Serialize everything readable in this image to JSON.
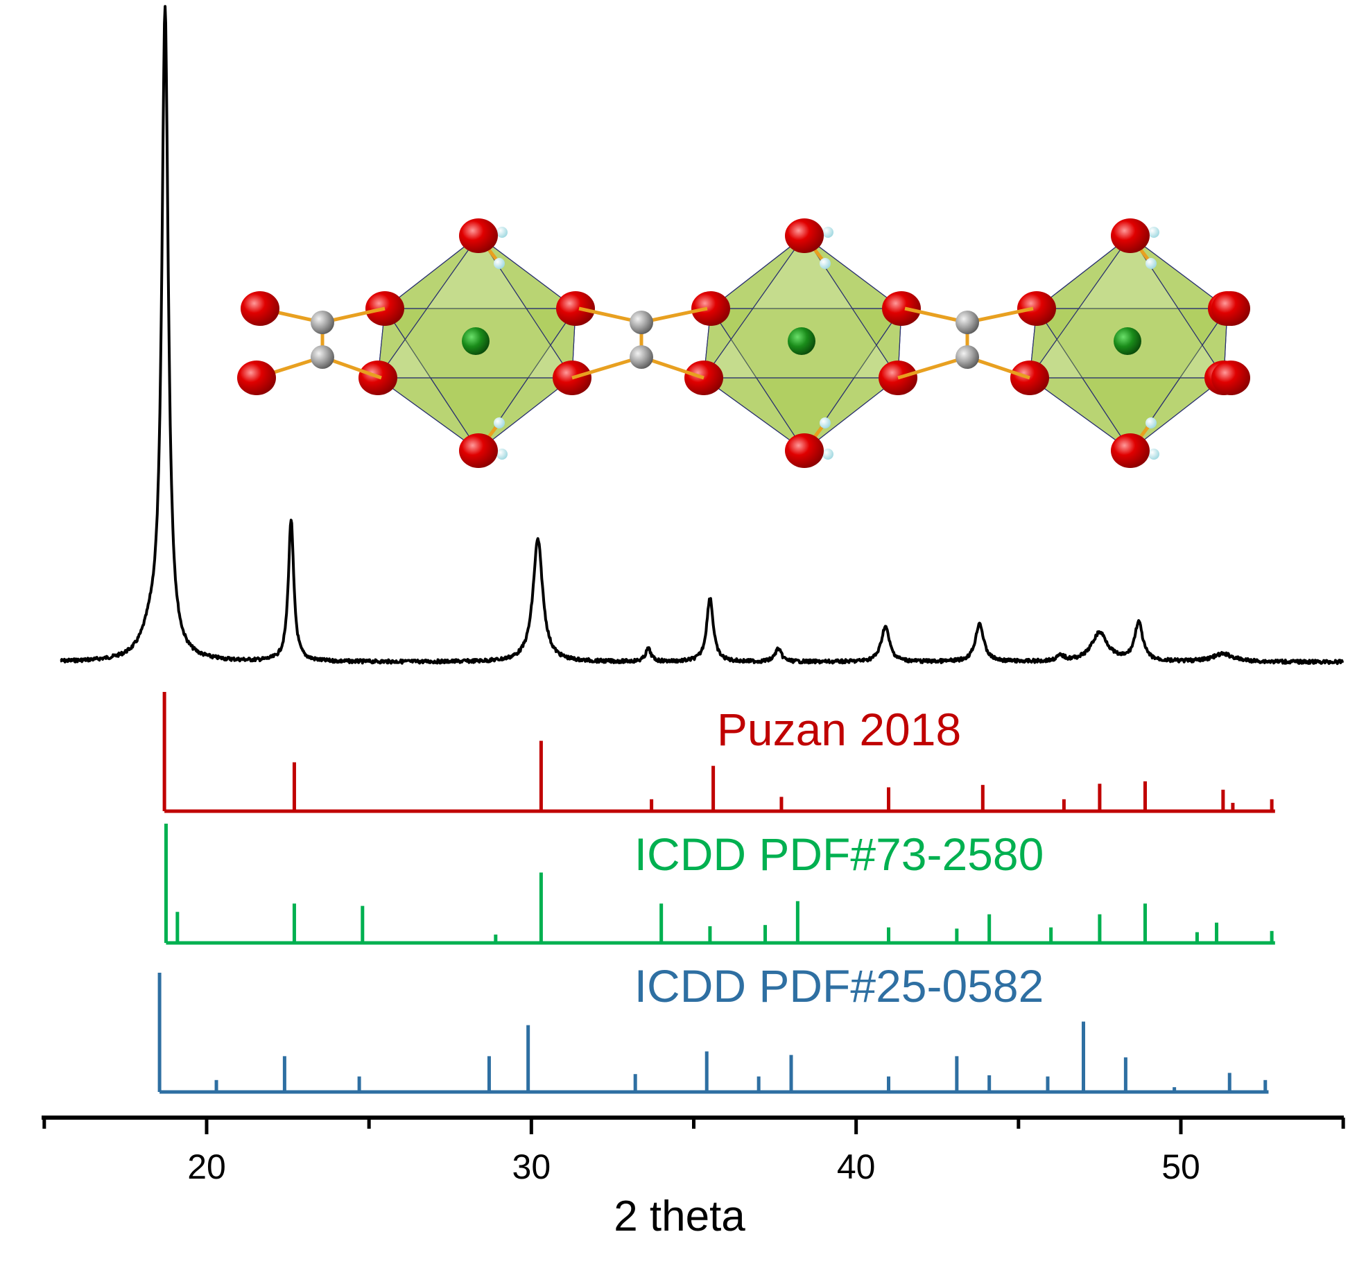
{
  "chart_data": {
    "type": "line",
    "xlabel": "2 theta",
    "xlim": [
      15,
      55
    ],
    "xticks": [
      20,
      30,
      40,
      50
    ],
    "colors": {
      "measured": "#000000",
      "puzan": "#c00000",
      "pdf73": "#00b050",
      "pdf25": "#2e6fa2",
      "oxygen": "#e00000",
      "carbon": "#a8a8a8",
      "metal": "#1a8c1a",
      "hydrogen": "#d8f4f8",
      "octahedron": "#9cc23a",
      "bond": "#e8a020"
    },
    "measured": {
      "baseline": 0.0,
      "peaks": [
        {
          "x": 18.3,
          "h": 0.04,
          "w": 0.35
        },
        {
          "x": 18.72,
          "h": 1.0,
          "w": 0.12
        },
        {
          "x": 22.6,
          "h": 0.22,
          "w": 0.1
        },
        {
          "x": 30.2,
          "h": 0.19,
          "w": 0.18
        },
        {
          "x": 33.6,
          "h": 0.02,
          "w": 0.1
        },
        {
          "x": 35.5,
          "h": 0.1,
          "w": 0.12
        },
        {
          "x": 37.6,
          "h": 0.02,
          "w": 0.12
        },
        {
          "x": 40.9,
          "h": 0.055,
          "w": 0.15
        },
        {
          "x": 43.8,
          "h": 0.06,
          "w": 0.15
        },
        {
          "x": 46.3,
          "h": 0.008,
          "w": 0.15
        },
        {
          "x": 47.5,
          "h": 0.045,
          "w": 0.3
        },
        {
          "x": 48.7,
          "h": 0.06,
          "w": 0.15
        },
        {
          "x": 51.3,
          "h": 0.012,
          "w": 0.4
        }
      ]
    },
    "series": [
      {
        "name": "Puzan 2018",
        "color": "#c00000",
        "x": [
          18.7,
          22.7,
          30.3,
          33.7,
          35.6,
          37.7,
          41.0,
          43.9,
          46.4,
          47.5,
          48.9,
          51.3,
          51.6,
          52.8
        ],
        "y": [
          1.0,
          0.41,
          0.59,
          0.1,
          0.38,
          0.12,
          0.2,
          0.22,
          0.1,
          0.23,
          0.25,
          0.18,
          0.07,
          0.1
        ]
      },
      {
        "name": "ICDD PDF#73-2580",
        "color": "#00b050",
        "x": [
          18.75,
          19.1,
          22.7,
          24.8,
          28.9,
          30.3,
          34.0,
          35.5,
          37.2,
          38.2,
          41.0,
          43.1,
          44.1,
          46.0,
          47.5,
          48.9,
          50.5,
          51.1,
          52.8
        ],
        "y": [
          1.0,
          0.26,
          0.33,
          0.31,
          0.07,
          0.59,
          0.33,
          0.14,
          0.15,
          0.35,
          0.13,
          0.12,
          0.24,
          0.13,
          0.24,
          0.33,
          0.09,
          0.17,
          0.1
        ]
      },
      {
        "name": "ICDD PDF#25-0582",
        "color": "#2e6fa2",
        "x": [
          18.55,
          20.3,
          22.4,
          24.7,
          28.7,
          29.9,
          33.2,
          35.4,
          37.0,
          38.0,
          41.0,
          43.1,
          44.1,
          45.9,
          47.0,
          48.3,
          49.8,
          51.5,
          52.6
        ],
        "y": [
          1.0,
          0.1,
          0.3,
          0.13,
          0.3,
          0.56,
          0.15,
          0.34,
          0.13,
          0.31,
          0.13,
          0.3,
          0.14,
          0.13,
          0.59,
          0.29,
          0.04,
          0.16,
          0.1
        ]
      }
    ]
  }
}
